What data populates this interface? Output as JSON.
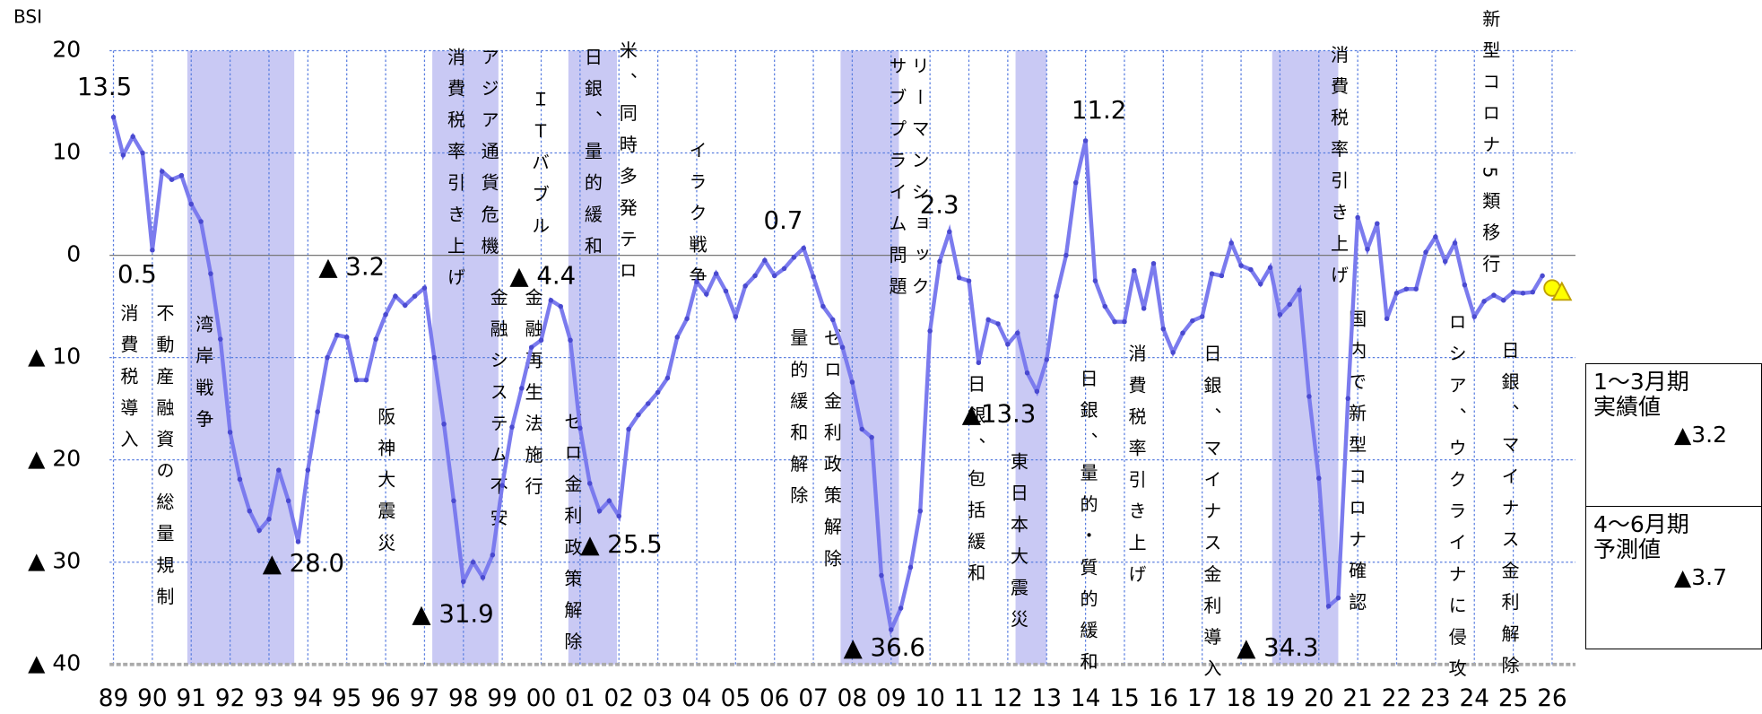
{
  "chart_data": {
    "type": "line",
    "y_axis_label": "BSI",
    "xlim": [
      1988.9,
      2026.6
    ],
    "ylim": [
      -40,
      20
    ],
    "xticks": [
      {
        "value": 1989,
        "label": "89"
      },
      {
        "value": 1990,
        "label": "90"
      },
      {
        "value": 1991,
        "label": "91"
      },
      {
        "value": 1992,
        "label": "92"
      },
      {
        "value": 1993,
        "label": "93"
      },
      {
        "value": 1994,
        "label": "94"
      },
      {
        "value": 1995,
        "label": "95"
      },
      {
        "value": 1996,
        "label": "96"
      },
      {
        "value": 1997,
        "label": "97"
      },
      {
        "value": 1998,
        "label": "98"
      },
      {
        "value": 1999,
        "label": "99"
      },
      {
        "value": 2000,
        "label": "00"
      },
      {
        "value": 2001,
        "label": "01"
      },
      {
        "value": 2002,
        "label": "02"
      },
      {
        "value": 2003,
        "label": "03"
      },
      {
        "value": 2004,
        "label": "04"
      },
      {
        "value": 2005,
        "label": "05"
      },
      {
        "value": 2006,
        "label": "06"
      },
      {
        "value": 2007,
        "label": "07"
      },
      {
        "value": 2008,
        "label": "08"
      },
      {
        "value": 2009,
        "label": "09"
      },
      {
        "value": 2010,
        "label": "10"
      },
      {
        "value": 2011,
        "label": "11"
      },
      {
        "value": 2012,
        "label": "12"
      },
      {
        "value": 2013,
        "label": "13"
      },
      {
        "value": 2014,
        "label": "14"
      },
      {
        "value": 2015,
        "label": "15"
      },
      {
        "value": 2016,
        "label": "16"
      },
      {
        "value": 2017,
        "label": "17"
      },
      {
        "value": 2018,
        "label": "18"
      },
      {
        "value": 2019,
        "label": "19"
      },
      {
        "value": 2020,
        "label": "20"
      },
      {
        "value": 2021,
        "label": "21"
      },
      {
        "value": 2022,
        "label": "22"
      },
      {
        "value": 2023,
        "label": "23"
      },
      {
        "value": 2024,
        "label": "24"
      },
      {
        "value": 2025,
        "label": "25"
      },
      {
        "value": 2026,
        "label": "26"
      }
    ],
    "yticks": [
      20,
      10,
      0,
      {
        "value": -10,
        "label": "▲ 10"
      },
      {
        "value": -20,
        "label": "▲ 20"
      },
      {
        "value": -30,
        "label": "▲ 30"
      },
      {
        "value": -40,
        "label": "▲ 40"
      }
    ],
    "grid": true,
    "color": "#7b7bee",
    "shaded_periods": [
      [
        1990.9,
        1993.65
      ],
      [
        1997.2,
        1998.9
      ],
      [
        2000.7,
        2001.95
      ],
      [
        2007.7,
        2009.2
      ],
      [
        2012.2,
        2013.0
      ],
      [
        2018.8,
        2020.5
      ]
    ],
    "x": [
      1989,
      1989.25,
      1989.5,
      1989.75,
      1990,
      1990.25,
      1990.5,
      1990.75,
      1991,
      1991.25,
      1991.5,
      1991.75,
      1992,
      1992.25,
      1992.5,
      1992.75,
      1993,
      1993.25,
      1993.5,
      1993.75,
      1994,
      1994.25,
      1994.5,
      1994.75,
      1995,
      1995.25,
      1995.5,
      1995.75,
      1996,
      1996.25,
      1996.5,
      1996.75,
      1997,
      1997.25,
      1997.5,
      1997.75,
      1998,
      1998.25,
      1998.5,
      1998.75,
      1999,
      1999.25,
      1999.5,
      1999.75,
      2000,
      2000.25,
      2000.5,
      2000.75,
      2001,
      2001.25,
      2001.5,
      2001.75,
      2002,
      2002.25,
      2002.5,
      2002.75,
      2003,
      2003.25,
      2003.5,
      2003.75,
      2004,
      2004.25,
      2004.5,
      2004.75,
      2005,
      2005.25,
      2005.5,
      2005.75,
      2006,
      2006.25,
      2006.5,
      2006.75,
      2007,
      2007.25,
      2007.5,
      2007.75,
      2008,
      2008.25,
      2008.5,
      2008.75,
      2009,
      2009.25,
      2009.5,
      2009.75,
      2010,
      2010.25,
      2010.5,
      2010.75,
      2011,
      2011.25,
      2011.5,
      2011.75,
      2012,
      2012.25,
      2012.5,
      2012.75,
      2013,
      2013.25,
      2013.5,
      2013.75,
      2014,
      2014.25,
      2014.5,
      2014.75,
      2015,
      2015.25,
      2015.5,
      2015.75,
      2016,
      2016.25,
      2016.5,
      2016.75,
      2017,
      2017.25,
      2017.5,
      2017.75,
      2018,
      2018.25,
      2018.5,
      2018.75,
      2019,
      2019.25,
      2019.5,
      2019.75,
      2020,
      2020.25,
      2020.5,
      2020.75,
      2021,
      2021.25,
      2021.5,
      2021.75,
      2022,
      2022.25,
      2022.5,
      2022.75,
      2023,
      2023.25,
      2023.5,
      2023.75,
      2024,
      2024.25,
      2024.5,
      2024.75,
      2025,
      2025.25,
      2025.5,
      2025.75,
      2026,
      2026.25
    ],
    "values": [
      13.5,
      9.8,
      11.6,
      10.0,
      0.5,
      8.2,
      7.4,
      7.8,
      5,
      3.3,
      -1.8,
      -8.2,
      -17.3,
      -21.9,
      -25,
      -26.9,
      -25.8,
      -21,
      -24,
      -28,
      -21,
      -15.3,
      -10,
      -7.8,
      -8,
      -12.2,
      -12.2,
      -8.2,
      -5.8,
      -4,
      -4.9,
      -4,
      -3.2,
      -10,
      -16.5,
      -24,
      -31.9,
      -30,
      -31.5,
      -29.3,
      -22.5,
      -16.8,
      -13,
      -9,
      -8.3,
      -4.4,
      -5,
      -8.3,
      -16.9,
      -22.3,
      -25,
      -24,
      -25.5,
      -17,
      -15.6,
      -14.5,
      -13.4,
      -12,
      -8,
      -6.2,
      -2.6,
      -3.8,
      -1.8,
      -3.5,
      -6,
      -3,
      -2,
      -0.5,
      -2,
      -1.3,
      -0.2,
      0.7,
      -2.1,
      -5,
      -6.3,
      -9,
      -12.4,
      -17,
      -17.8,
      -31.3,
      -36.6,
      -34.5,
      -30.5,
      -25,
      -7.4,
      -0.6,
      2.3,
      -2.2,
      -2.5,
      -10.5,
      -6.3,
      -6.7,
      -8.7,
      -7.6,
      -11.5,
      -13.3,
      -10.2,
      -4,
      0,
      7.1,
      11.2,
      -2.5,
      -5,
      -6.5,
      -6.5,
      -1.5,
      -5.2,
      -0.8,
      -7.2,
      -9.5,
      -7.6,
      -6.4,
      -6,
      -1.8,
      -2,
      1.2,
      -1,
      -1.4,
      -2.8,
      -1.2,
      -5.8,
      -4.8,
      -3.4,
      -13.8,
      -21.8,
      -34.3,
      -33.5,
      -14,
      3.7,
      0.6,
      3.1,
      -6.2,
      -3.7,
      -3.3,
      -3.3,
      0.3,
      1.8,
      -0.6,
      1.2,
      -2.9,
      -6,
      -4.5,
      -3.9,
      -4.4,
      -3.6,
      -3.7,
      -3.6,
      -2.0,
      -3.2,
      -3.7
    ],
    "value_labels": [
      "13.5",
      null,
      null,
      null,
      "0.5",
      null,
      null,
      null,
      null,
      null,
      null,
      null,
      null,
      null,
      null,
      null,
      null,
      null,
      null,
      "▲ 28.0",
      null,
      null,
      null,
      null,
      null,
      null,
      null,
      null,
      null,
      null,
      null,
      null,
      "▲ 3.2",
      null,
      null,
      null,
      "▲ 31.9",
      null,
      null,
      null,
      null,
      null,
      null,
      null,
      null,
      "▲ 4.4",
      null,
      null,
      null,
      null,
      null,
      null,
      "▲ 25.5",
      null,
      null,
      null,
      null,
      null,
      null,
      null,
      null,
      null,
      null,
      null,
      null,
      null,
      null,
      null,
      null,
      null,
      null,
      "0.7",
      null,
      null,
      null,
      null,
      null,
      null,
      null,
      null,
      "▲ 36.6",
      null,
      null,
      null,
      null,
      null,
      "2.3",
      null,
      null,
      null,
      null,
      null,
      null,
      null,
      null,
      "▲13.3",
      null,
      null,
      null,
      null,
      "11.2",
      null,
      null,
      null,
      null,
      null,
      null,
      null,
      null,
      null,
      null,
      null,
      null,
      null,
      null,
      null,
      null,
      null,
      null,
      null,
      null,
      null,
      null,
      null,
      null,
      "▲ 34.3",
      null,
      null,
      null,
      null,
      null,
      null,
      null,
      null,
      null,
      null,
      null,
      null,
      null,
      null,
      null,
      null,
      null,
      null,
      null,
      null,
      null,
      null,
      null,
      null
    ],
    "annotations": [
      "消費税導入",
      "不動産融資の総量規制",
      "湾岸戦争",
      "阪神大震災",
      "消費税率引き上げ",
      "アジア通貨危機",
      "金融システム不安",
      "ＩＴバブル",
      "金融再生法施行",
      "ゼロ金利政策解除",
      "日銀、量的緩和",
      "米、同時多発テロ",
      "イラク戦争",
      "量的緩和解除",
      "ゼロ金利政策解除",
      "サブプライム問題",
      "リーマンショック",
      "日銀、包括緩和",
      "東日本大震災",
      "日銀、量的・質的緩和",
      "消費税率引き上げ",
      "日銀、マイナス金利導入",
      "消費税率引き上げ",
      "国内で新型コロナ確認",
      "新型コロナ5類移行",
      "ロシア、ウクライナに侵攻",
      "日銀、マイナス金利解除"
    ],
    "side_boxes": [
      {
        "title": "1～3月期",
        "subtitle": "実績値",
        "value": "▲3.2"
      },
      {
        "title": "4～6月期",
        "subtitle": "予測値",
        "value": "▲3.7"
      }
    ]
  }
}
